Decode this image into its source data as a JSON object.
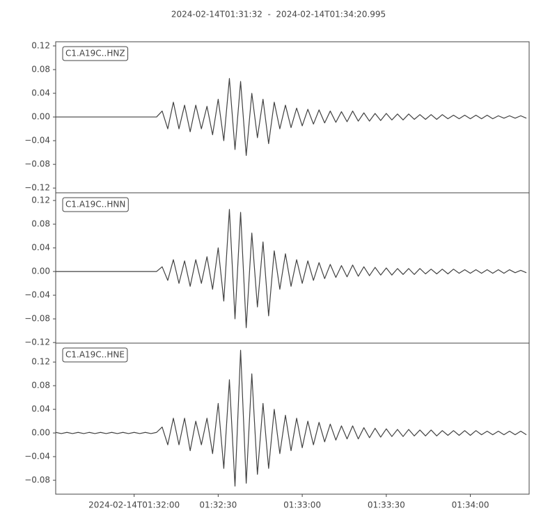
{
  "chart_data": {
    "type": "line",
    "title": "2024-02-14T01:31:32  -  2024-02-14T01:34:20.995",
    "xlim": [
      "01:31:32",
      "01:34:20.995"
    ],
    "xticks": [
      {
        "value": "01:32:00",
        "label": "2024-02-14T01:32:00"
      },
      "01:32:30",
      "01:33:00",
      "01:33:30",
      "01:34:00"
    ],
    "x": [
      "01:31:32",
      "01:31:34",
      "01:31:36",
      "01:31:38",
      "01:31:40",
      "01:31:42",
      "01:31:44",
      "01:31:46",
      "01:31:48",
      "01:31:50",
      "01:31:52",
      "01:31:54",
      "01:31:56",
      "01:31:58",
      "01:32:00",
      "01:32:02",
      "01:32:04",
      "01:32:06",
      "01:32:08",
      "01:32:10",
      "01:32:12",
      "01:32:14",
      "01:32:16",
      "01:32:18",
      "01:32:20",
      "01:32:22",
      "01:32:24",
      "01:32:26",
      "01:32:28",
      "01:32:30",
      "01:32:32",
      "01:32:34",
      "01:32:36",
      "01:32:38",
      "01:32:40",
      "01:32:42",
      "01:32:44",
      "01:32:46",
      "01:32:48",
      "01:32:50",
      "01:32:52",
      "01:32:54",
      "01:32:56",
      "01:32:58",
      "01:33:00",
      "01:33:02",
      "01:33:04",
      "01:33:06",
      "01:33:08",
      "01:33:10",
      "01:33:12",
      "01:33:14",
      "01:33:16",
      "01:33:18",
      "01:33:20",
      "01:33:22",
      "01:33:24",
      "01:33:26",
      "01:33:28",
      "01:33:30",
      "01:33:32",
      "01:33:34",
      "01:33:36",
      "01:33:38",
      "01:33:40",
      "01:33:42",
      "01:33:44",
      "01:33:46",
      "01:33:48",
      "01:33:50",
      "01:33:52",
      "01:33:54",
      "01:33:56",
      "01:33:58",
      "01:34:00",
      "01:34:02",
      "01:34:04",
      "01:34:06",
      "01:34:08",
      "01:34:10",
      "01:34:12",
      "01:34:14",
      "01:34:16",
      "01:34:18",
      "01:34:20"
    ],
    "series": [
      {
        "name": "C1.A19C..HNZ",
        "color": "#404040",
        "ylim": [
          -0.128,
          0.127
        ],
        "yticks": [
          {
            "value": -0.12,
            "label": "−0.12"
          },
          {
            "value": -0.08,
            "label": "−0.08"
          },
          {
            "value": -0.04,
            "label": "−0.04"
          },
          {
            "value": 0,
            "label": "0.00"
          },
          0.04,
          0.08,
          0.12
        ],
        "values": [
          0,
          0,
          0,
          0,
          0,
          0,
          0,
          0,
          0,
          0,
          0,
          0,
          0,
          0,
          0,
          0,
          0,
          0,
          0,
          0.01,
          -0.02,
          0.025,
          -0.02,
          0.02,
          -0.025,
          0.02,
          -0.02,
          0.018,
          -0.03,
          0.03,
          -0.04,
          0.065,
          -0.055,
          0.06,
          -0.065,
          0.04,
          -0.035,
          0.03,
          -0.045,
          0.025,
          -0.02,
          0.02,
          -0.018,
          0.015,
          -0.015,
          0.013,
          -0.012,
          0.012,
          -0.01,
          0.01,
          -0.009,
          0.009,
          -0.008,
          0.01,
          -0.007,
          0.007,
          -0.007,
          0.006,
          -0.006,
          0.006,
          -0.005,
          0.005,
          -0.005,
          0.005,
          -0.004,
          0.004,
          -0.004,
          0.004,
          -0.004,
          0.004,
          -0.003,
          0.003,
          -0.003,
          0.003,
          -0.003,
          0.003,
          -0.003,
          0.003,
          -0.003,
          0.002,
          -0.002,
          0.002,
          -0.002,
          0.002,
          -0.002
        ]
      },
      {
        "name": "C1.A19C..HNN",
        "color": "#404040",
        "ylim": [
          -0.121,
          0.133
        ],
        "yticks": [
          {
            "value": -0.12,
            "label": "−0.12"
          },
          {
            "value": -0.08,
            "label": "−0.08"
          },
          {
            "value": -0.04,
            "label": "−0.04"
          },
          {
            "value": 0,
            "label": "0.00"
          },
          0.04,
          0.08,
          0.12
        ],
        "values": [
          0,
          0,
          0,
          0,
          0,
          0,
          0,
          0,
          0,
          0,
          0,
          0,
          0,
          0,
          0,
          0,
          0,
          0,
          0,
          0.008,
          -0.015,
          0.02,
          -0.02,
          0.018,
          -0.025,
          0.02,
          -0.02,
          0.025,
          -0.03,
          0.04,
          -0.05,
          0.105,
          -0.08,
          0.1,
          -0.095,
          0.065,
          -0.06,
          0.05,
          -0.075,
          0.035,
          -0.03,
          0.03,
          -0.025,
          0.02,
          -0.02,
          0.018,
          -0.015,
          0.015,
          -0.012,
          0.012,
          -0.01,
          0.01,
          -0.009,
          0.011,
          -0.008,
          0.008,
          -0.007,
          0.007,
          -0.006,
          0.006,
          -0.006,
          0.005,
          -0.005,
          0.005,
          -0.005,
          0.005,
          -0.004,
          0.004,
          -0.004,
          0.004,
          -0.004,
          0.004,
          -0.003,
          0.003,
          -0.003,
          0.003,
          -0.003,
          0.003,
          -0.003,
          0.003,
          -0.003,
          0.003,
          -0.002,
          0.002,
          -0.002
        ]
      },
      {
        "name": "C1.A19C..HNE",
        "color": "#404040",
        "ylim": [
          -0.1035,
          0.152
        ],
        "yticks": [
          {
            "value": -0.08,
            "label": "−0.08"
          },
          {
            "value": -0.04,
            "label": "−0.04"
          },
          {
            "value": 0,
            "label": "0.00"
          },
          0.04,
          0.08,
          0.12
        ],
        "values": [
          0.001,
          -0.001,
          0.001,
          -0.001,
          0.001,
          -0.001,
          0.001,
          -0.001,
          0.001,
          -0.001,
          0.001,
          -0.001,
          0.001,
          -0.001,
          0.001,
          -0.001,
          0.001,
          -0.001,
          0.001,
          0.01,
          -0.02,
          0.025,
          -0.02,
          0.025,
          -0.03,
          0.02,
          -0.02,
          0.025,
          -0.035,
          0.05,
          -0.06,
          0.09,
          -0.09,
          0.14,
          -0.085,
          0.1,
          -0.07,
          0.05,
          -0.06,
          0.04,
          -0.035,
          0.03,
          -0.03,
          0.025,
          -0.025,
          0.02,
          -0.02,
          0.018,
          -0.015,
          0.015,
          -0.012,
          0.012,
          -0.01,
          0.012,
          -0.01,
          0.009,
          -0.008,
          0.008,
          -0.007,
          0.007,
          -0.006,
          0.006,
          -0.006,
          0.006,
          -0.005,
          0.005,
          -0.005,
          0.005,
          -0.005,
          0.004,
          -0.004,
          0.004,
          -0.004,
          0.004,
          -0.004,
          0.004,
          -0.003,
          0.003,
          -0.003,
          0.003,
          -0.003,
          0.003,
          -0.003,
          0.003,
          -0.003
        ]
      }
    ]
  }
}
